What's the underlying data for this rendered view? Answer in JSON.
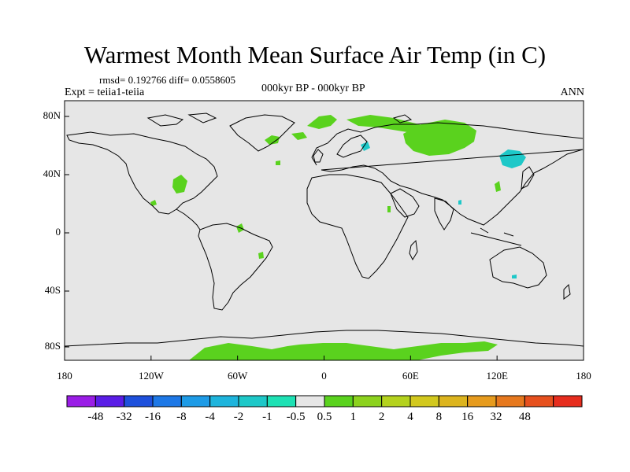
{
  "title": "Warmest Month Mean Surface Air Temp (in C)",
  "stats": "rmsd= 0.192766 diff= 0.0558605",
  "expt": "Expt = teiia1-teiia",
  "period": "000kyr BP - 000kyr BP",
  "season": "ANN",
  "lat_labels": [
    "80N",
    "40N",
    "0",
    "40S",
    "80S"
  ],
  "lon_labels": [
    "180",
    "120W",
    "60W",
    "0",
    "60E",
    "120E",
    "180"
  ],
  "colorbar": {
    "colors": [
      "#9a1de6",
      "#5a1de6",
      "#1e50dc",
      "#1e78e6",
      "#1e9be6",
      "#1eb4dc",
      "#1ec8c8",
      "#1ee1b4",
      "#e6e6e6",
      "#5ad21e",
      "#8cd21e",
      "#b4d21e",
      "#d2c81e",
      "#dcb41e",
      "#e69b1e",
      "#e6781e",
      "#e6501e",
      "#e62d1e"
    ],
    "labels": [
      "-48",
      "-32",
      "-16",
      "-8",
      "-4",
      "-2",
      "-1",
      "-0.5",
      "0.5",
      "1",
      "2",
      "4",
      "8",
      "16",
      "32",
      "48"
    ]
  },
  "colors": {
    "ocean_bg": "#e6e6e6",
    "positive_anomaly": "#5ad21e",
    "negative_anomaly": "#1ec8c8",
    "coastline": "#000000"
  }
}
